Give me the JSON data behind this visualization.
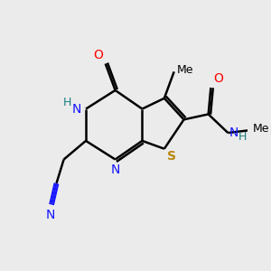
{
  "background_color": "#EBEBEB",
  "figsize": [
    3.0,
    3.0
  ],
  "dpi": 100,
  "atom_colors": {
    "C": "#000000",
    "N": "#1414FF",
    "O": "#FF0000",
    "S": "#B8860B",
    "H": "#1414FF"
  }
}
